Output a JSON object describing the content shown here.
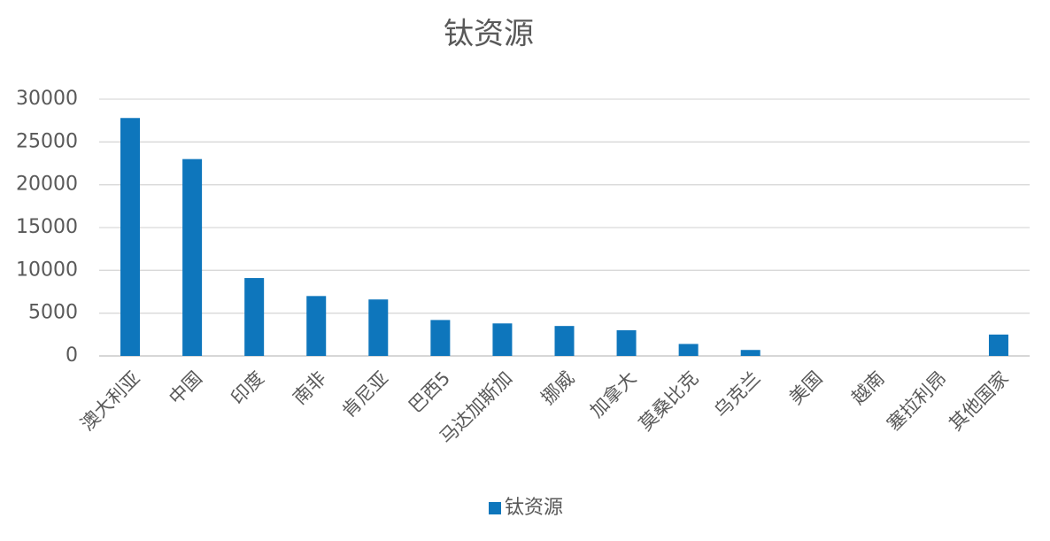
{
  "chart_data": {
    "type": "bar",
    "title": "钛资源",
    "categories": [
      "澳大利亚",
      "中国",
      "印度",
      "南非",
      "肯尼亚",
      "巴西5",
      "马达加斯加",
      "挪威",
      "加拿大",
      "莫桑比克",
      "乌克兰",
      "美国",
      "越南",
      "塞拉利昂",
      "其他国家"
    ],
    "series": [
      {
        "name": "钛资源",
        "color": "#0e76bc",
        "values": [
          27800,
          23000,
          9100,
          7000,
          6600,
          4200,
          3800,
          3500,
          3000,
          1400,
          700,
          0,
          0,
          0,
          2500
        ]
      }
    ],
    "ylim": [
      0,
      30000
    ],
    "yticks": [
      0,
      5000,
      10000,
      15000,
      20000,
      25000,
      30000
    ],
    "grid": true,
    "legend": "bottom"
  }
}
